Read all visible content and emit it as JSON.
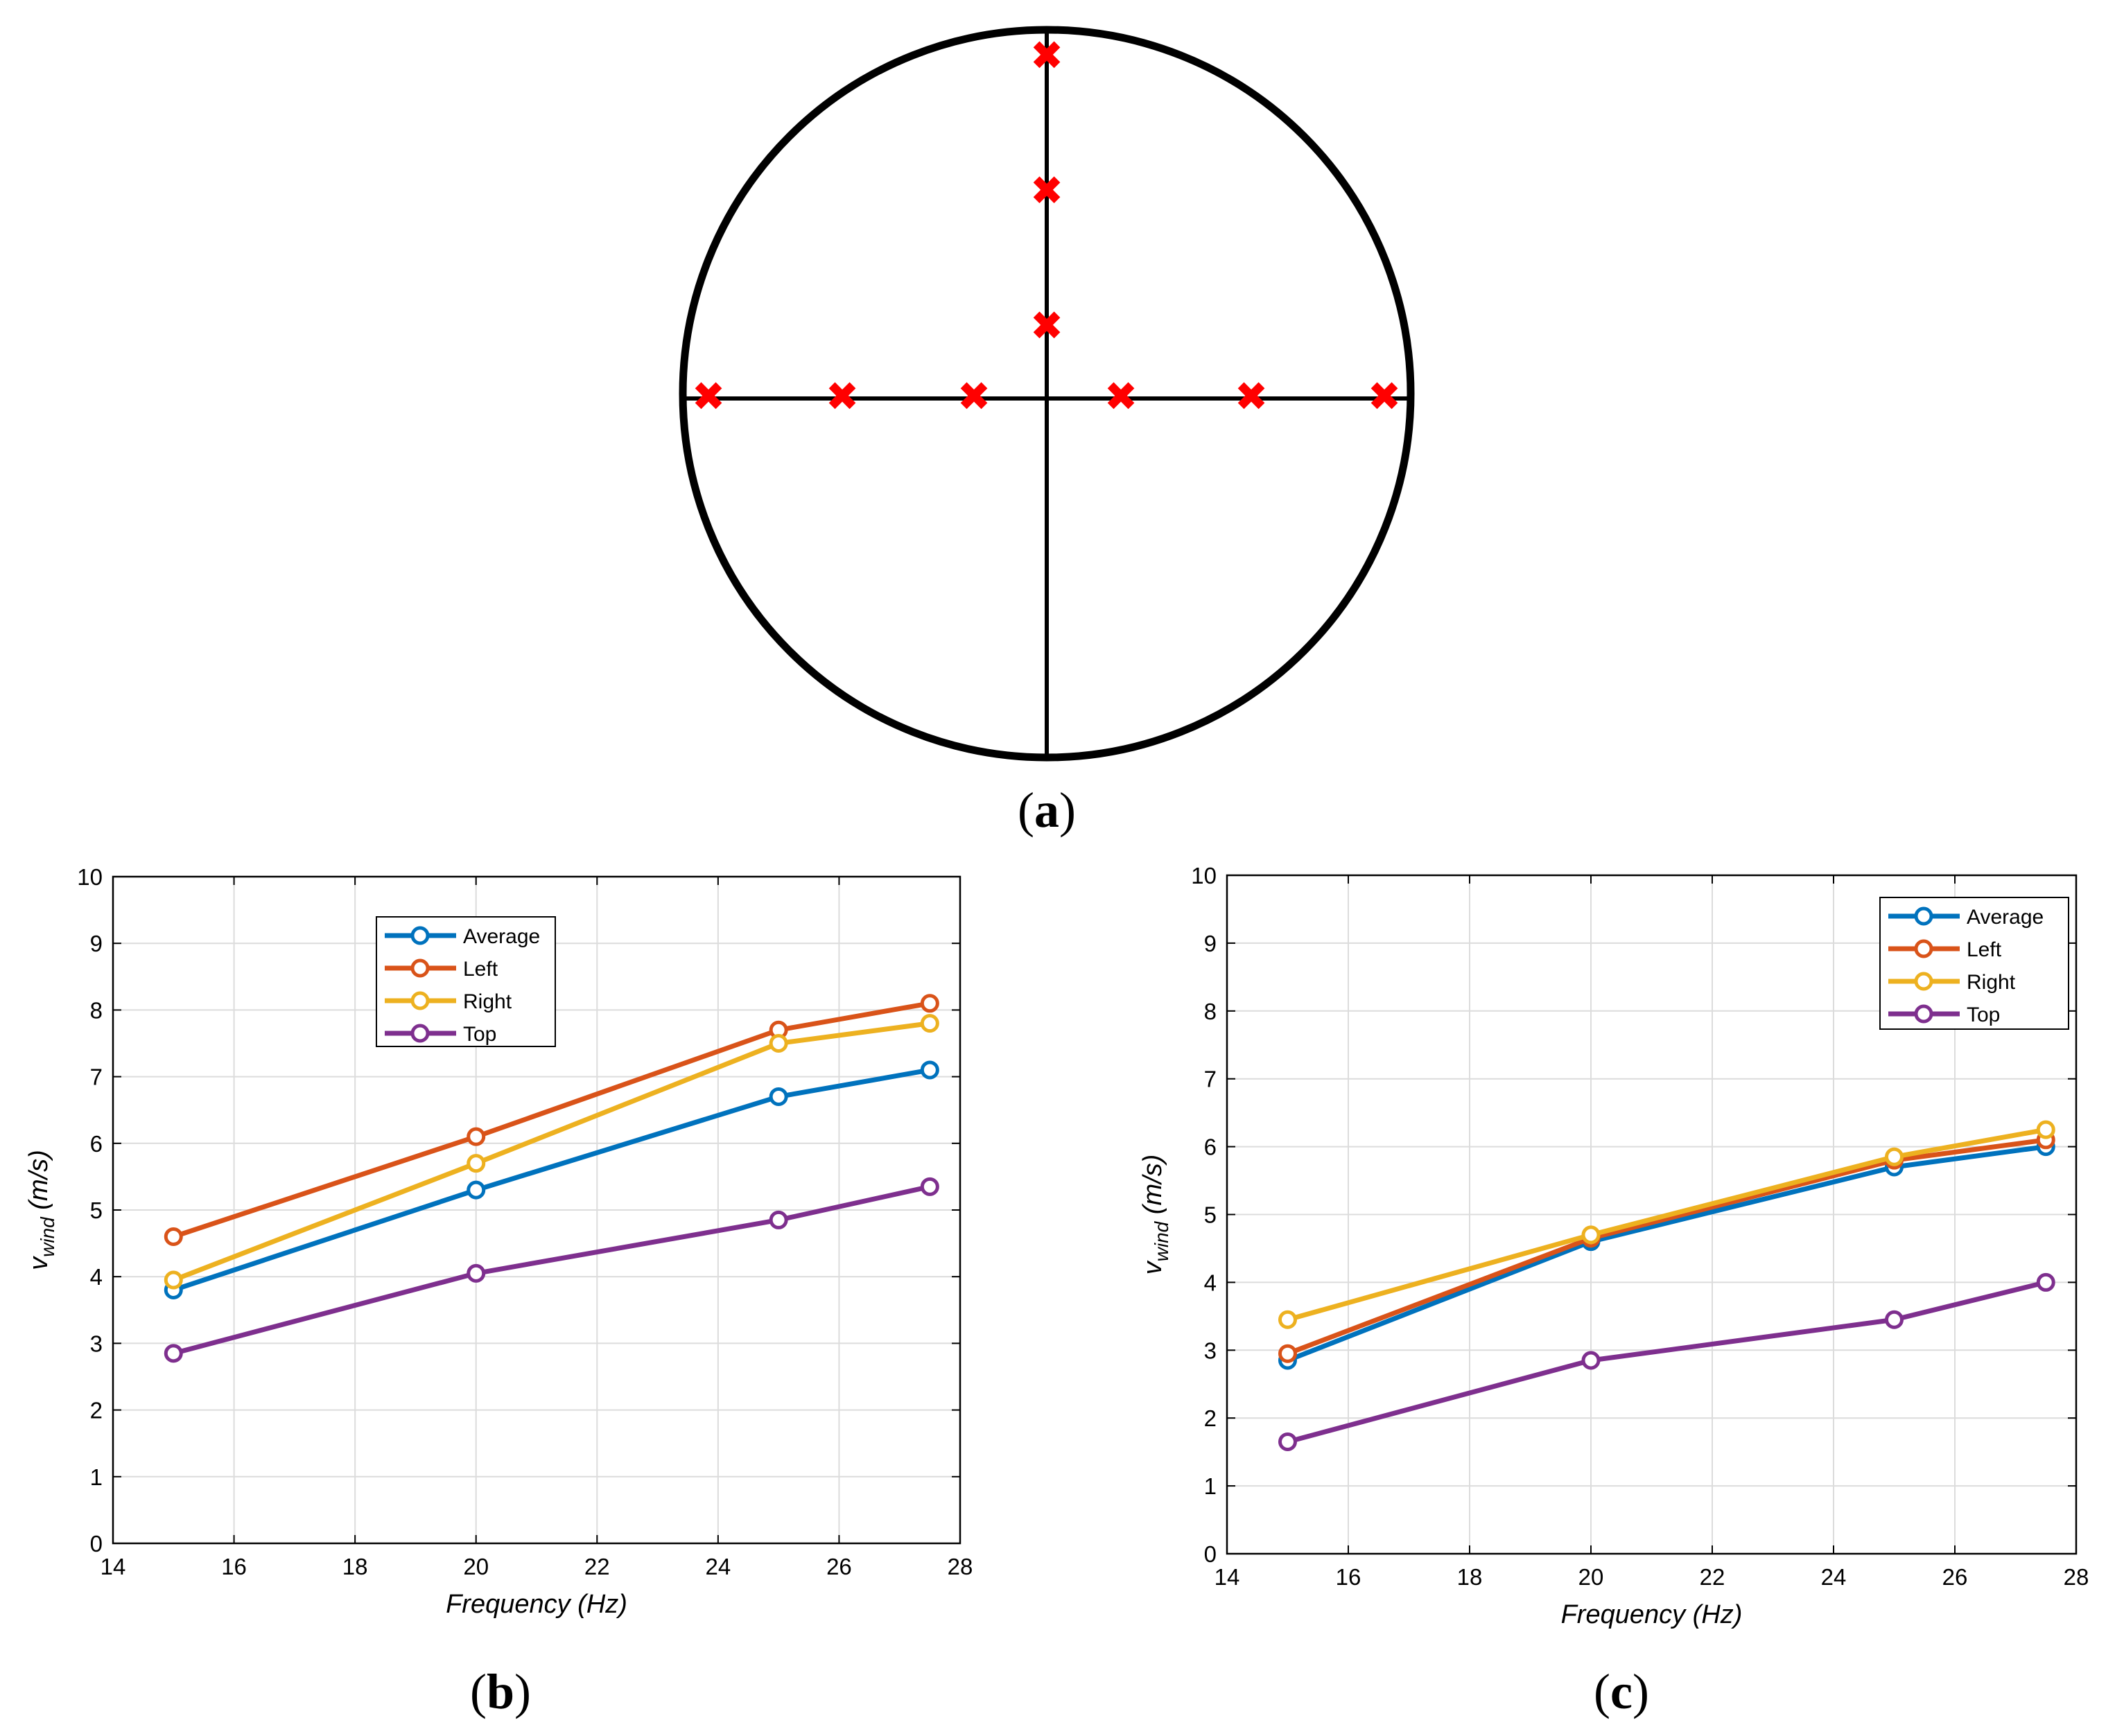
{
  "panel_a": {
    "label": "a",
    "marker_symbol": "✖",
    "marker_color": "#ff0000",
    "line_color": "#000000"
  },
  "chart_data": [
    {
      "type": "line",
      "panel_label": "b",
      "title": "",
      "xlabel": "Frequency (Hz)",
      "ylabel_main": "v",
      "ylabel_sub": "wind",
      "ylabel_unit": "(m/s)",
      "xlim": [
        14,
        28
      ],
      "ylim": [
        0,
        10
      ],
      "xticks": [
        14,
        16,
        18,
        20,
        22,
        24,
        26,
        28
      ],
      "yticks": [
        0,
        1,
        2,
        3,
        4,
        5,
        6,
        7,
        8,
        9,
        10
      ],
      "grid": true,
      "legend_position": "top-center",
      "x": [
        15,
        20,
        25,
        27.5
      ],
      "series": [
        {
          "name": "Average",
          "color": "#0072BD",
          "values": [
            3.8,
            5.3,
            6.7,
            7.1
          ]
        },
        {
          "name": "Left",
          "color": "#D95319",
          "values": [
            4.6,
            6.1,
            7.7,
            8.1
          ]
        },
        {
          "name": "Right",
          "color": "#EDB120",
          "values": [
            3.95,
            5.7,
            7.5,
            7.8
          ]
        },
        {
          "name": "Top",
          "color": "#7E2F8E",
          "values": [
            2.85,
            4.05,
            4.85,
            5.35
          ]
        }
      ]
    },
    {
      "type": "line",
      "panel_label": "c",
      "title": "",
      "xlabel": "Frequency (Hz)",
      "ylabel_main": "v",
      "ylabel_sub": "wind",
      "ylabel_unit": "(m/s)",
      "xlim": [
        14,
        28
      ],
      "ylim": [
        0,
        10
      ],
      "xticks": [
        14,
        16,
        18,
        20,
        22,
        24,
        26,
        28
      ],
      "yticks": [
        0,
        1,
        2,
        3,
        4,
        5,
        6,
        7,
        8,
        9,
        10
      ],
      "grid": true,
      "legend_position": "top-right",
      "x": [
        15,
        20,
        25,
        27.5
      ],
      "series": [
        {
          "name": "Average",
          "color": "#0072BD",
          "values": [
            2.85,
            4.6,
            5.7,
            6.0
          ]
        },
        {
          "name": "Left",
          "color": "#D95319",
          "values": [
            2.95,
            4.65,
            5.8,
            6.1
          ]
        },
        {
          "name": "Right",
          "color": "#EDB120",
          "values": [
            3.45,
            4.7,
            5.85,
            6.25
          ]
        },
        {
          "name": "Top",
          "color": "#7E2F8E",
          "values": [
            1.65,
            2.85,
            3.45,
            4.0
          ]
        }
      ]
    }
  ]
}
